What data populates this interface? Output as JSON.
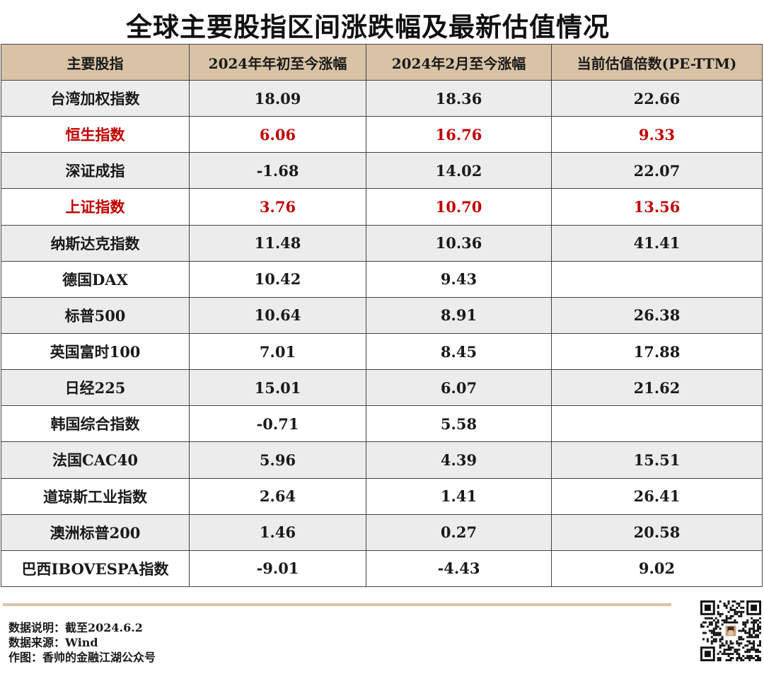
{
  "title": "全球主要股指区间涨跌幅及最新估值情况",
  "accent_colors": {
    "header_bg": "#d9c3a6",
    "highlight_text": "#c00000",
    "stripe": "#ececec"
  },
  "table": {
    "headers": [
      "主要股指",
      "2024年年初至今涨幅",
      "2024年2月至今涨幅",
      "当前估值倍数(PE-TTM)"
    ],
    "rows": [
      {
        "name": "台湾加权指数",
        "ytd": "18.09",
        "feb": "18.36",
        "pe": "22.66",
        "highlight": false
      },
      {
        "name": "恒生指数",
        "ytd": "6.06",
        "feb": "16.76",
        "pe": "9.33",
        "highlight": true
      },
      {
        "name": "深证成指",
        "ytd": "-1.68",
        "feb": "14.02",
        "pe": "22.07",
        "highlight": false
      },
      {
        "name": "上证指数",
        "ytd": "3.76",
        "feb": "10.70",
        "pe": "13.56",
        "highlight": true
      },
      {
        "name": "纳斯达克指数",
        "ytd": "11.48",
        "feb": "10.36",
        "pe": "41.41",
        "highlight": false
      },
      {
        "name": "德国DAX",
        "ytd": "10.42",
        "feb": "9.43",
        "pe": "",
        "highlight": false
      },
      {
        "name": "标普500",
        "ytd": "10.64",
        "feb": "8.91",
        "pe": "26.38",
        "highlight": false
      },
      {
        "name": "英国富时100",
        "ytd": "7.01",
        "feb": "8.45",
        "pe": "17.88",
        "highlight": false
      },
      {
        "name": "日经225",
        "ytd": "15.01",
        "feb": "6.07",
        "pe": "21.62",
        "highlight": false
      },
      {
        "name": "韩国综合指数",
        "ytd": "-0.71",
        "feb": "5.58",
        "pe": "",
        "highlight": false
      },
      {
        "name": "法国CAC40",
        "ytd": "5.96",
        "feb": "4.39",
        "pe": "15.51",
        "highlight": false
      },
      {
        "name": "道琼斯工业指数",
        "ytd": "2.64",
        "feb": "1.41",
        "pe": "26.41",
        "highlight": false
      },
      {
        "name": "澳洲标普200",
        "ytd": "1.46",
        "feb": "0.27",
        "pe": "20.58",
        "highlight": false
      },
      {
        "name": "巴西IBOVESPA指数",
        "ytd": "-9.01",
        "feb": "-4.43",
        "pe": "9.02",
        "highlight": false
      }
    ]
  },
  "chart_data": {
    "type": "table",
    "title": "全球主要股指区间涨跌幅及最新估值情况",
    "columns": [
      "主要股指",
      "2024年年初至今涨幅",
      "2024年2月至今涨幅",
      "当前估值倍数(PE-TTM)"
    ],
    "categories": [
      "台湾加权指数",
      "恒生指数",
      "深证成指",
      "上证指数",
      "纳斯达克指数",
      "德国DAX",
      "标普500",
      "英国富时100",
      "日经225",
      "韩国综合指数",
      "法国CAC40",
      "道琼斯工业指数",
      "澳洲标普200",
      "巴西IBOVESPA指数"
    ],
    "series": [
      {
        "name": "2024年年初至今涨幅",
        "values": [
          18.09,
          6.06,
          -1.68,
          3.76,
          11.48,
          10.42,
          10.64,
          7.01,
          15.01,
          -0.71,
          5.96,
          2.64,
          1.46,
          -9.01
        ]
      },
      {
        "name": "2024年2月至今涨幅",
        "values": [
          18.36,
          16.76,
          14.02,
          10.7,
          10.36,
          9.43,
          8.91,
          8.45,
          6.07,
          5.58,
          4.39,
          1.41,
          0.27,
          -4.43
        ]
      },
      {
        "name": "当前估值倍数(PE-TTM)",
        "values": [
          22.66,
          9.33,
          22.07,
          13.56,
          41.41,
          null,
          26.38,
          17.88,
          21.62,
          null,
          15.51,
          26.41,
          20.58,
          9.02
        ]
      }
    ]
  },
  "footer": {
    "note": "数据说明：截至2024.6.2",
    "source": "数据来源：Wind",
    "author": "作图：香帅的金融江湖公众号"
  },
  "qr_icon": "qr-code-icon"
}
